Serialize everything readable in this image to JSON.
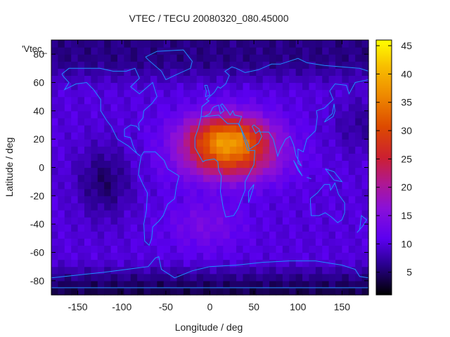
{
  "chart_data": {
    "type": "heatmap",
    "title": "VTEC / TECU 20080320_080.45000",
    "xlabel": "Longitude / deg",
    "ylabel": "Latitude / deg",
    "series_key": "'Vtec_",
    "xlim": [
      -180,
      180
    ],
    "ylim": [
      -90,
      90
    ],
    "x_ticks": [
      -150,
      -100,
      -50,
      0,
      50,
      100,
      150
    ],
    "y_ticks": [
      -80,
      -60,
      -40,
      -20,
      0,
      20,
      40,
      60,
      80
    ],
    "colorbar": {
      "min": 1,
      "max": 46,
      "ticks": [
        5,
        10,
        15,
        20,
        25,
        30,
        35,
        40,
        45
      ],
      "palette": "black-blue-purple-red-orange-yellow"
    },
    "field_features": [
      {
        "name": "background",
        "value": 10
      },
      {
        "name": "equatorial_anomaly_peak",
        "lon": 20,
        "lat": 20,
        "value": 36
      },
      {
        "name": "anomaly_south_lobe",
        "lon": 25,
        "lat": 2,
        "value": 28
      },
      {
        "name": "high_latitude_low_north",
        "lat": 75,
        "value": 6
      },
      {
        "name": "high_latitude_low_south",
        "lat": -85,
        "value": 4
      },
      {
        "name": "pacific_low",
        "lon": -120,
        "lat": -10,
        "value": 5
      }
    ]
  }
}
